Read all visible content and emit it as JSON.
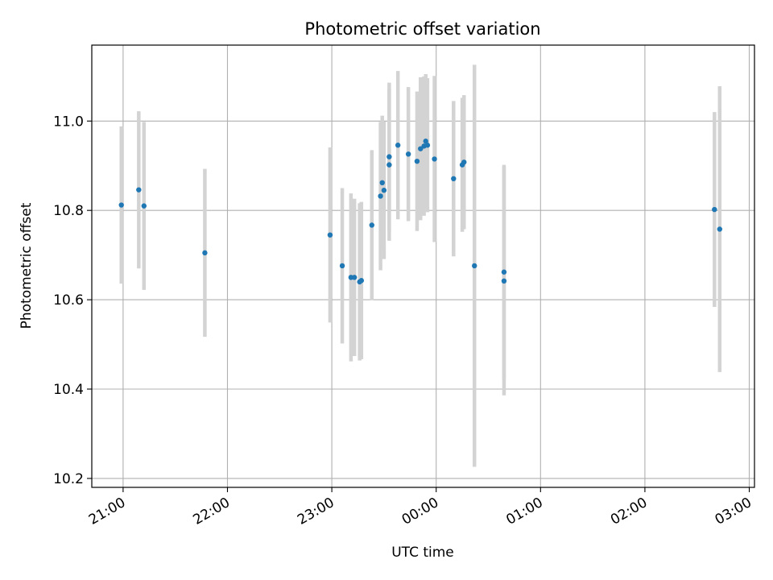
{
  "chart_data": {
    "type": "scatter",
    "title": "Photometric offset variation",
    "xlabel": "UTC time",
    "ylabel": "Photometric offset",
    "xticks": [
      "21:00",
      "22:00",
      "23:00",
      "00:00",
      "01:00",
      "02:00",
      "03:00"
    ],
    "yticks": [
      "10.2",
      "10.4",
      "10.6",
      "10.8",
      "11.0"
    ],
    "xlim": [
      "20:42",
      "03:03"
    ],
    "ylim": [
      10.18,
      11.17
    ],
    "grid": true,
    "colors": {
      "point": "#1f77b4",
      "errorbar": "#d3d3d3",
      "grid": "#b0b0b0"
    },
    "points": [
      {
        "x": "20:59",
        "y": 10.812,
        "err": 0.176
      },
      {
        "x": "21:09",
        "y": 10.846,
        "err": 0.176
      },
      {
        "x": "21:12",
        "y": 10.81,
        "err": 0.188
      },
      {
        "x": "21:47",
        "y": 10.705,
        "err": 0.188
      },
      {
        "x": "22:59",
        "y": 10.745,
        "err": 0.196
      },
      {
        "x": "23:06",
        "y": 10.676,
        "err": 0.174
      },
      {
        "x": "23:11",
        "y": 10.65,
        "err": 0.188
      },
      {
        "x": "23:13",
        "y": 10.65,
        "err": 0.176
      },
      {
        "x": "23:16",
        "y": 10.64,
        "err": 0.176
      },
      {
        "x": "23:17",
        "y": 10.643,
        "err": 0.176
      },
      {
        "x": "23:23",
        "y": 10.767,
        "err": 0.168
      },
      {
        "x": "23:28",
        "y": 10.832,
        "err": 0.166
      },
      {
        "x": "23:29",
        "y": 10.862,
        "err": 0.15
      },
      {
        "x": "23:30",
        "y": 10.845,
        "err": 0.154
      },
      {
        "x": "23:33",
        "y": 10.92,
        "err": 0.166
      },
      {
        "x": "23:33",
        "y": 10.902,
        "err": 0.17
      },
      {
        "x": "23:38",
        "y": 10.946,
        "err": 0.166
      },
      {
        "x": "23:44",
        "y": 10.926,
        "err": 0.15
      },
      {
        "x": "23:49",
        "y": 10.91,
        "err": 0.156
      },
      {
        "x": "23:51",
        "y": 10.938,
        "err": 0.16
      },
      {
        "x": "23:53",
        "y": 10.944,
        "err": 0.156
      },
      {
        "x": "23:54",
        "y": 10.955,
        "err": 0.15
      },
      {
        "x": "23:55",
        "y": 10.946,
        "err": 0.15
      },
      {
        "x": "23:59",
        "y": 10.915,
        "err": 0.186
      },
      {
        "x": "00:10",
        "y": 10.871,
        "err": 0.174
      },
      {
        "x": "00:15",
        "y": 10.902,
        "err": 0.15
      },
      {
        "x": "00:16",
        "y": 10.908,
        "err": 0.15
      },
      {
        "x": "00:22",
        "y": 10.676,
        "err": 0.45
      },
      {
        "x": "00:39",
        "y": 10.662,
        "err": 0.24
      },
      {
        "x": "00:39",
        "y": 10.642,
        "err": 0.256
      },
      {
        "x": "02:40",
        "y": 10.802,
        "err": 0.218
      },
      {
        "x": "02:43",
        "y": 10.758,
        "err": 0.32
      }
    ]
  }
}
